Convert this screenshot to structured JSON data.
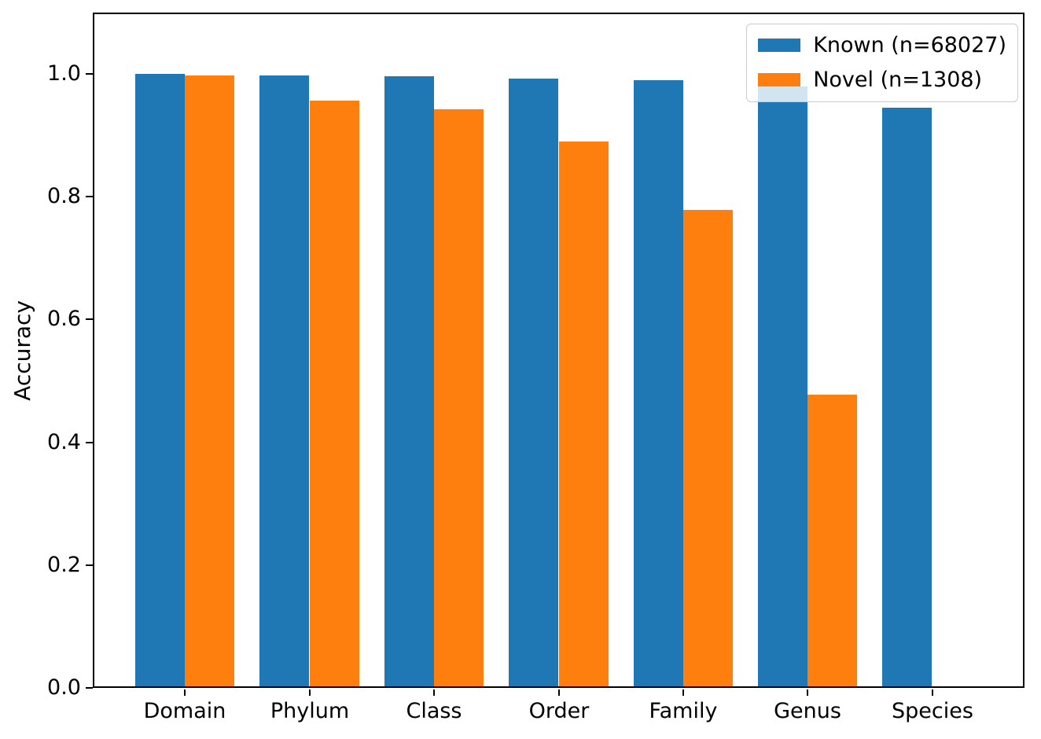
{
  "figure": {
    "background": "#ffffff"
  },
  "chart_data": {
    "type": "bar",
    "title": "",
    "xlabel": "",
    "ylabel": "Accuracy",
    "categories": [
      "Domain",
      "Phylum",
      "Class",
      "Order",
      "Family",
      "Genus",
      "Species"
    ],
    "series": [
      {
        "name": "Known (n=68027)",
        "n": 68027,
        "color": "#1f77b4",
        "values": [
          1.0,
          0.998,
          0.996,
          0.992,
          0.99,
          0.979,
          0.945
        ]
      },
      {
        "name": "Novel (n=1308)",
        "n": 1308,
        "color": "#ff7f0e",
        "values": [
          0.997,
          0.956,
          0.943,
          0.89,
          0.779,
          0.478,
          0.0
        ]
      }
    ],
    "ylim": [
      0,
      1.1
    ],
    "xlim": [
      -0.74,
      6.74
    ],
    "yticks": [
      0.0,
      0.2,
      0.4,
      0.6,
      0.8,
      1.0
    ],
    "ytick_labels": [
      "0.0",
      "0.2",
      "0.4",
      "0.6",
      "0.8",
      "1.0"
    ],
    "bar_width": 0.4,
    "grid": false,
    "legend_position": "upper right",
    "spine_color": "#000000",
    "tick_color": "#000000"
  }
}
